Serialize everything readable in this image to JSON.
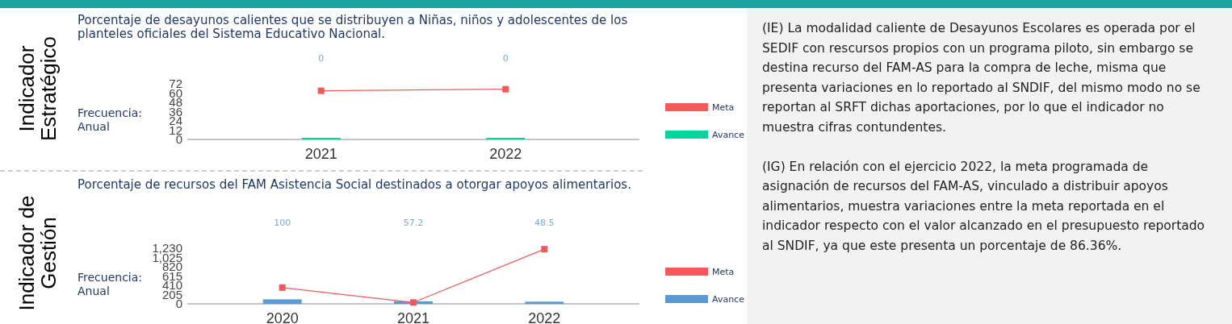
{
  "chart_data": [
    {
      "type": "bar",
      "title": "Porcentaje de desayunos calientes que se distribuyen a Niñas, niños y adolescentes de los planteles oficiales del Sistema Educativo Nacional.",
      "annotations": [
        "Indicador Estratégico",
        "Frecuencia: Anual"
      ],
      "categories": [
        "2021",
        "2022"
      ],
      "series": [
        {
          "name": "Meta",
          "type": "line",
          "color": "#f05a5a",
          "values": [
            63,
            65
          ]
        },
        {
          "name": "Avance",
          "type": "bar",
          "color": "#00d49a",
          "values": [
            0,
            0
          ],
          "value_labels": [
            "0",
            "0"
          ]
        }
      ],
      "ylim": [
        0,
        72
      ],
      "yticks": [
        0,
        12,
        24,
        36,
        48,
        60,
        72
      ],
      "legend": "right",
      "marker": "square"
    },
    {
      "type": "bar",
      "title": "Porcentaje de recursos del FAM Asistencia Social destinados a otorgar apoyos alimentarios.",
      "annotations": [
        "Indicador de Gestión",
        "Frecuencia: Anual"
      ],
      "categories": [
        "2020",
        "2021",
        "2022"
      ],
      "series": [
        {
          "name": "Meta",
          "type": "line",
          "color": "#f05a5a",
          "values": [
            360,
            30,
            1210
          ]
        },
        {
          "name": "Avance",
          "type": "bar",
          "color": "#5b9bd5",
          "values": [
            100,
            57.2,
            48.5
          ],
          "value_labels": [
            "100",
            "57.2",
            "48.5"
          ]
        }
      ],
      "ylim": [
        0,
        1230
      ],
      "yticks": [
        0,
        205,
        410,
        615,
        820,
        {
          "value": 1025,
          "label": "1,025"
        },
        {
          "value": 1230,
          "label": "1,230"
        }
      ],
      "legend": "right",
      "marker": "square"
    },
    {
      "type": "other",
      "annotations": [
        "(IE) La modalidad caliente de Desayunos Escolares es operada por el SEDIF con rescursos propios con un programa piloto, sin embargo se destina recurso del FAM-AS para la compra de leche, misma que presenta variaciones en lo reportado al SNDIF, del mismo modo no se reportan al SRFT dichas aportaciones, por lo que el indicador no muestra cifras contundentes.",
        "(IG) En relación con el ejercicio 2022, la meta programada de asignación de recursos del FAM-AS, vinculado a distribuir apoyos alimentarios, muestra variaciones entre la meta reportada en el indicador respecto con el valor alcanzado en el presupuesto reportado al SNDIF, ya que este presenta un porcentaje de 86.36%."
      ]
    }
  ]
}
